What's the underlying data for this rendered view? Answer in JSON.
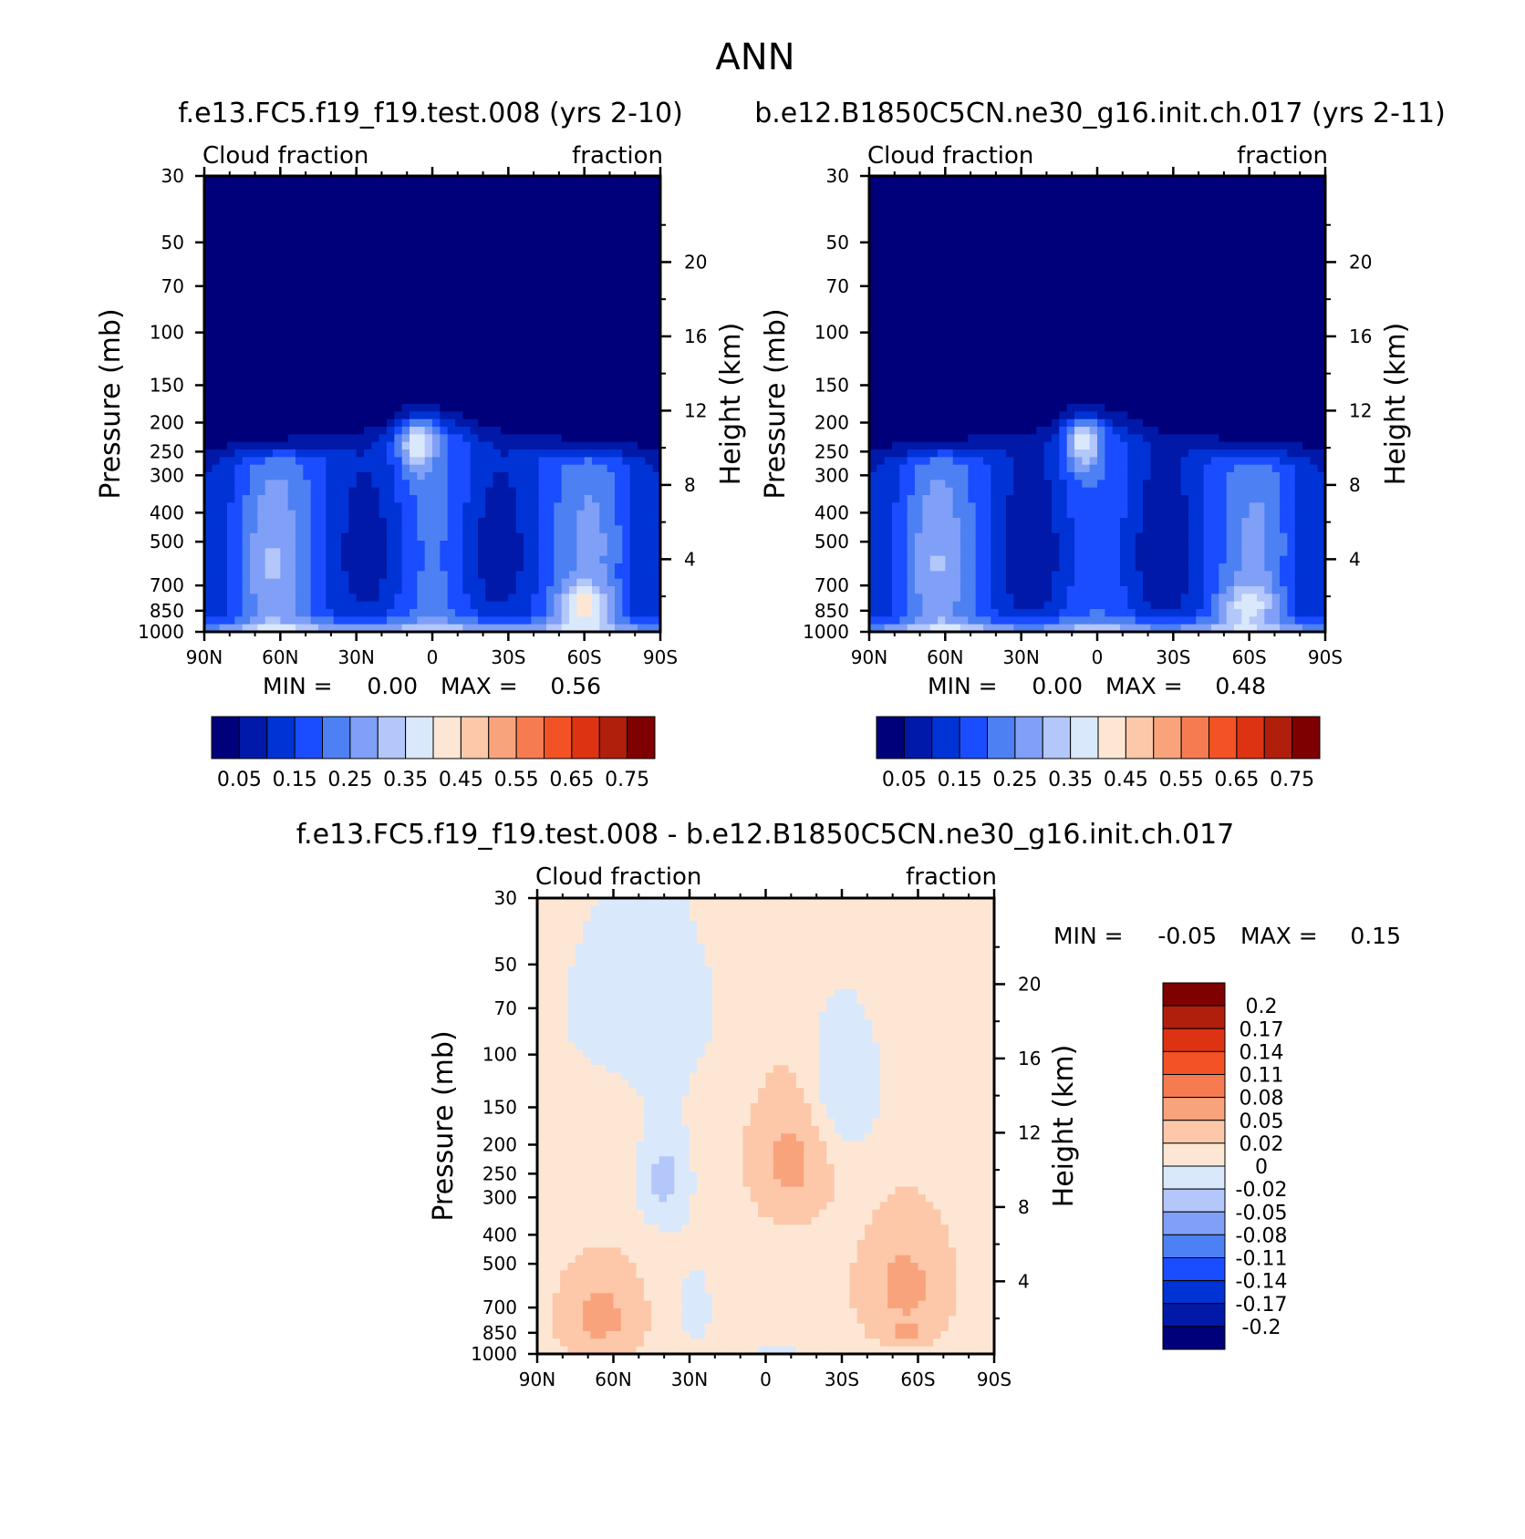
{
  "figure_title": "ANN",
  "colors": {
    "abs": [
      "#00007a",
      "#0019a8",
      "#0033d6",
      "#1a4dff",
      "#4d80f2",
      "#809ff7",
      "#b3c7fa",
      "#dae8fb",
      "#fde7d4",
      "#fcc8a9",
      "#f9a37d",
      "#f77b51",
      "#f35224",
      "#de3312",
      "#b01e0c",
      "#7f0000"
    ],
    "diff": [
      "#7f0000",
      "#b01e0c",
      "#de3312",
      "#f35224",
      "#f77b51",
      "#f9a37d",
      "#fcc8a9",
      "#fde7d4",
      "#dae8fb",
      "#b3c7fa",
      "#809ff7",
      "#4d80f2",
      "#1a4dff",
      "#0033d6",
      "#0019a8",
      "#00007a"
    ]
  },
  "chart_data": [
    {
      "id": "panel-test",
      "type": "heatmap",
      "title": "f.e13.FC5.f19_f19.test.008 (yrs 2-10)",
      "left_label": "Cloud fraction",
      "right_label": "fraction",
      "ylabel": "Pressure (mb)",
      "ylabel_right": "Height (km)",
      "x_ticks": [
        "90N",
        "60N",
        "30N",
        "0",
        "30S",
        "60S",
        "90S"
      ],
      "y_ticks": [
        "30",
        "50",
        "70",
        "100",
        "150",
        "200",
        "250",
        "300",
        "400",
        "500",
        "700",
        "850",
        "1000"
      ],
      "y_right_ticks": [
        "20",
        "16",
        "12",
        "8",
        "4"
      ],
      "min_label": "MIN =",
      "min_value": "0.00",
      "max_label": "MAX =",
      "max_value": "0.56",
      "colorbar_labels": [
        "0.05",
        "0.15",
        "0.25",
        "0.35",
        "0.45",
        "0.55",
        "0.65",
        "0.75"
      ],
      "levels": [
        0.05,
        0.1,
        0.15,
        0.2,
        0.25,
        0.3,
        0.35,
        0.4,
        0.45,
        0.5,
        0.55,
        0.6,
        0.65,
        0.7,
        0.75
      ],
      "field": "test"
    },
    {
      "id": "panel-control",
      "type": "heatmap",
      "title": "b.e12.B1850C5CN.ne30_g16.init.ch.017 (yrs 2-11)",
      "left_label": "Cloud fraction",
      "right_label": "fraction",
      "ylabel": "Pressure (mb)",
      "ylabel_right": "Height (km)",
      "x_ticks": [
        "90N",
        "60N",
        "30N",
        "0",
        "30S",
        "60S",
        "90S"
      ],
      "y_ticks": [
        "30",
        "50",
        "70",
        "100",
        "150",
        "200",
        "250",
        "300",
        "400",
        "500",
        "700",
        "850",
        "1000"
      ],
      "y_right_ticks": [
        "20",
        "16",
        "12",
        "8",
        "4"
      ],
      "min_label": "MIN =",
      "min_value": "0.00",
      "max_label": "MAX =",
      "max_value": "0.48",
      "colorbar_labels": [
        "0.05",
        "0.15",
        "0.25",
        "0.35",
        "0.45",
        "0.55",
        "0.65",
        "0.75"
      ],
      "levels": [
        0.05,
        0.1,
        0.15,
        0.2,
        0.25,
        0.3,
        0.35,
        0.4,
        0.45,
        0.5,
        0.55,
        0.6,
        0.65,
        0.7,
        0.75
      ],
      "field": "control"
    },
    {
      "id": "panel-diff",
      "type": "heatmap",
      "title": "f.e13.FC5.f19_f19.test.008 - b.e12.B1850C5CN.ne30_g16.init.ch.017",
      "left_label": "Cloud fraction",
      "right_label": "fraction",
      "ylabel": "Pressure (mb)",
      "ylabel_right": "Height (km)",
      "x_ticks": [
        "90N",
        "60N",
        "30N",
        "0",
        "30S",
        "60S",
        "90S"
      ],
      "y_ticks": [
        "30",
        "50",
        "70",
        "100",
        "150",
        "200",
        "250",
        "300",
        "400",
        "500",
        "700",
        "850",
        "1000"
      ],
      "y_right_ticks": [
        "20",
        "16",
        "12",
        "8",
        "4"
      ],
      "min_label": "MIN =",
      "min_value": "-0.05",
      "max_label": "MAX =",
      "max_value": "0.15",
      "colorbar_labels": [
        "0.2",
        "0.17",
        "0.14",
        "0.11",
        "0.08",
        "0.05",
        "0.02",
        "0",
        "-0.02",
        "-0.05",
        "-0.08",
        "-0.11",
        "-0.14",
        "-0.17",
        "-0.2"
      ],
      "levels": [
        -0.2,
        -0.17,
        -0.14,
        -0.11,
        -0.08,
        -0.05,
        -0.02,
        0,
        0.02,
        0.05,
        0.08,
        0.11,
        0.14,
        0.17,
        0.2
      ],
      "field": "diff"
    }
  ]
}
